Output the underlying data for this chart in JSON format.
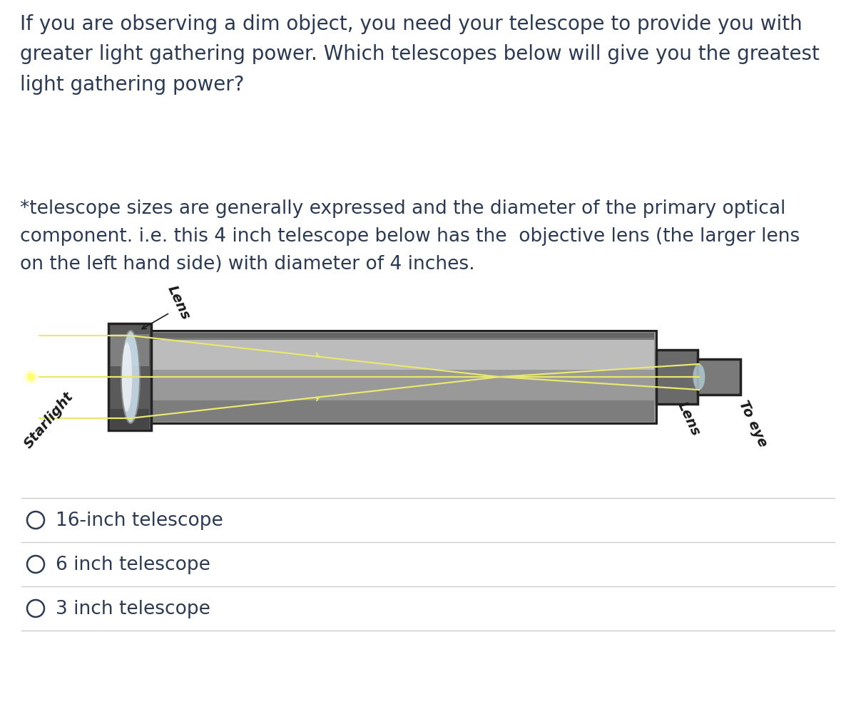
{
  "background_color": "#ffffff",
  "text_color": "#2b3a52",
  "question_text": "If you are observing a dim object, you need your telescope to provide you with\ngreater light gathering power. Which telescopes below will give you the greatest\nlight gathering power?",
  "footnote_text": "*telescope sizes are generally expressed and the diameter of the primary optical\ncomponent. i.e. this 4 inch telescope below has the  objective lens (the larger lens\non the left hand side) with diameter of 4 inches.",
  "options": [
    "16-inch telescope",
    "6 inch telescope",
    "3 inch telescope"
  ],
  "question_fontsize": 20,
  "footnote_fontsize": 19,
  "option_fontsize": 19,
  "divider_color": "#cccccc",
  "circle_color": "#2b3a52",
  "ray_color": "#e8e870",
  "label_color": "#1a1a1a"
}
